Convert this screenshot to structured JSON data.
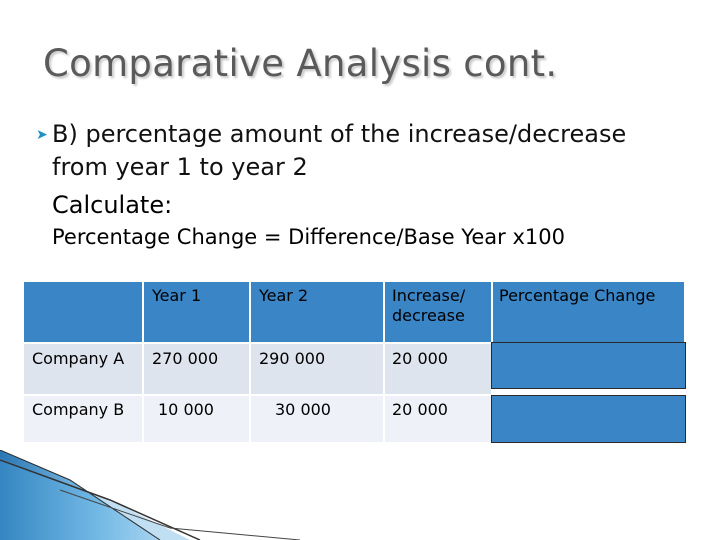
{
  "slide": {
    "title": "Comparative Analysis cont.",
    "bullet_text": "B) percentage amount of the increase/decrease from year 1 to year 2",
    "calculate_label": "Calculate:",
    "formula": "Percentage Change = Difference/Base Year x100"
  },
  "table": {
    "headers": [
      "",
      "Year 1",
      "Year 2",
      "Increase/ decrease",
      "Percentage Change"
    ],
    "rows": [
      {
        "label": "Company A",
        "year1": "270 000",
        "year2": "290 000",
        "diff": "20 000",
        "pct": ""
      },
      {
        "label": "Company B",
        "year1": "10 000",
        "year2": "30 000",
        "diff": "20 000",
        "pct": ""
      }
    ]
  },
  "colors": {
    "header": "#3a85c6",
    "row_a": "#dde4ee",
    "row_b": "#eef2f8",
    "title": "#5a5a5a",
    "bullet_arrow": "#1e90c8"
  }
}
